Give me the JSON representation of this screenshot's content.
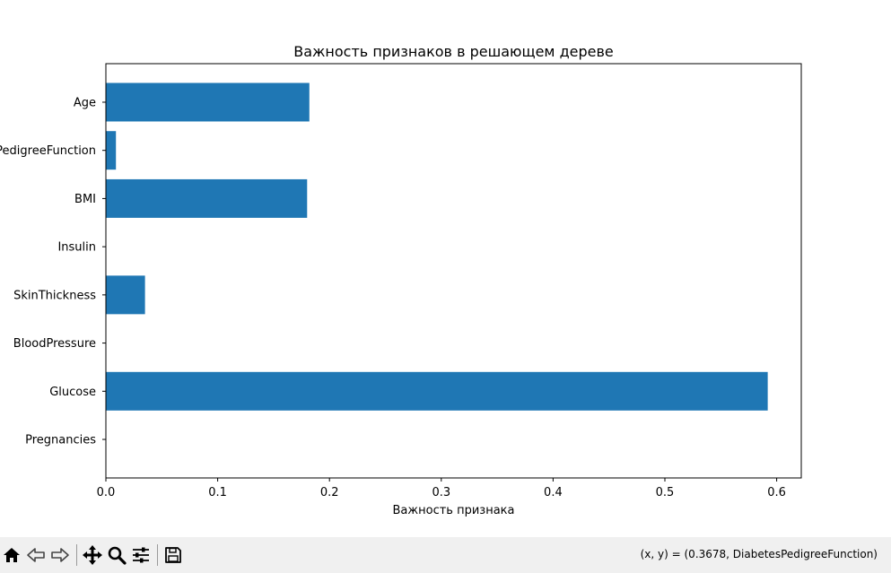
{
  "chart_data": {
    "type": "bar",
    "orientation": "horizontal",
    "title": "Важность признаков в решающем дереве",
    "xlabel": "Важность признака",
    "ylabel": "",
    "categories": [
      "Pregnancies",
      "Glucose",
      "BloodPressure",
      "SkinThickness",
      "Insulin",
      "BMI",
      "DiabetesPedigreeFunction",
      "Age"
    ],
    "values": [
      0.0,
      0.592,
      0.0,
      0.035,
      0.0,
      0.18,
      0.009,
      0.182
    ],
    "xlim": [
      0,
      0.622
    ],
    "xticks": [
      0.0,
      0.1,
      0.2,
      0.3,
      0.4,
      0.5,
      0.6
    ],
    "xtick_labels": [
      "0.0",
      "0.1",
      "0.2",
      "0.3",
      "0.4",
      "0.5",
      "0.6"
    ],
    "bar_color": "#1f77b4",
    "grid": false,
    "legend": "none"
  },
  "toolbar": {
    "buttons": [
      {
        "name": "home-button",
        "icon": "home-icon"
      },
      {
        "name": "back-button",
        "icon": "arrow-left-icon"
      },
      {
        "name": "forward-button",
        "icon": "arrow-right-icon"
      },
      {
        "name": "pan-button",
        "icon": "move-icon"
      },
      {
        "name": "zoom-button",
        "icon": "magnifier-icon"
      },
      {
        "name": "configure-subplots-button",
        "icon": "sliders-icon"
      },
      {
        "name": "save-button",
        "icon": "floppy-disk-icon"
      }
    ],
    "coordinates": "(x, y) = (0.3678, DiabetesPedigreeFunction)"
  }
}
